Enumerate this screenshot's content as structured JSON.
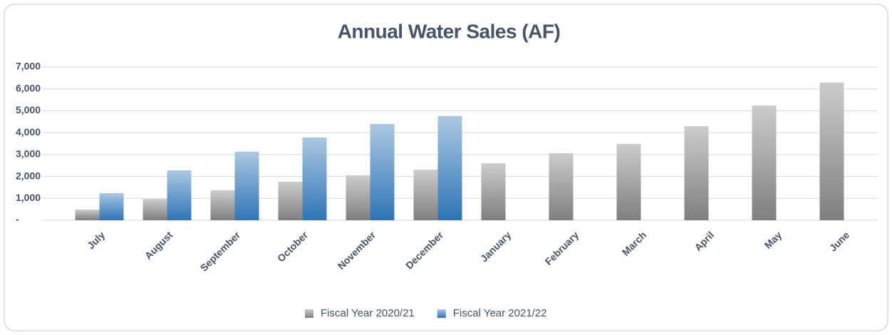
{
  "chart_data": {
    "type": "bar",
    "title": "Annual Water Sales (AF)",
    "categories": [
      "July",
      "August",
      "September",
      "October",
      "November",
      "December",
      "January",
      "February",
      "March",
      "April",
      "May",
      "June"
    ],
    "series": [
      {
        "name": "Fiscal Year 2020/21",
        "color": "#7f7f7f",
        "values": [
          490,
          970,
          1370,
          1760,
          2050,
          2310,
          2600,
          3060,
          3490,
          4300,
          5240,
          6290
        ]
      },
      {
        "name": "Fiscal Year 2021/22",
        "color": "#2e75b6",
        "values": [
          1240,
          2280,
          3130,
          3780,
          4400,
          4760,
          null,
          null,
          null,
          null,
          null,
          null
        ]
      }
    ],
    "ylim": [
      0,
      7000
    ],
    "yticks": [
      {
        "value": 0,
        "label": "-"
      },
      {
        "value": 1000,
        "label": "1,000"
      },
      {
        "value": 2000,
        "label": "2,000"
      },
      {
        "value": 3000,
        "label": "3,000"
      },
      {
        "value": 4000,
        "label": "4,000"
      },
      {
        "value": 5000,
        "label": "5,000"
      },
      {
        "value": 6000,
        "label": "6,000"
      },
      {
        "value": 7000,
        "label": "7,000"
      }
    ],
    "grid": true,
    "legend": "bottom"
  }
}
